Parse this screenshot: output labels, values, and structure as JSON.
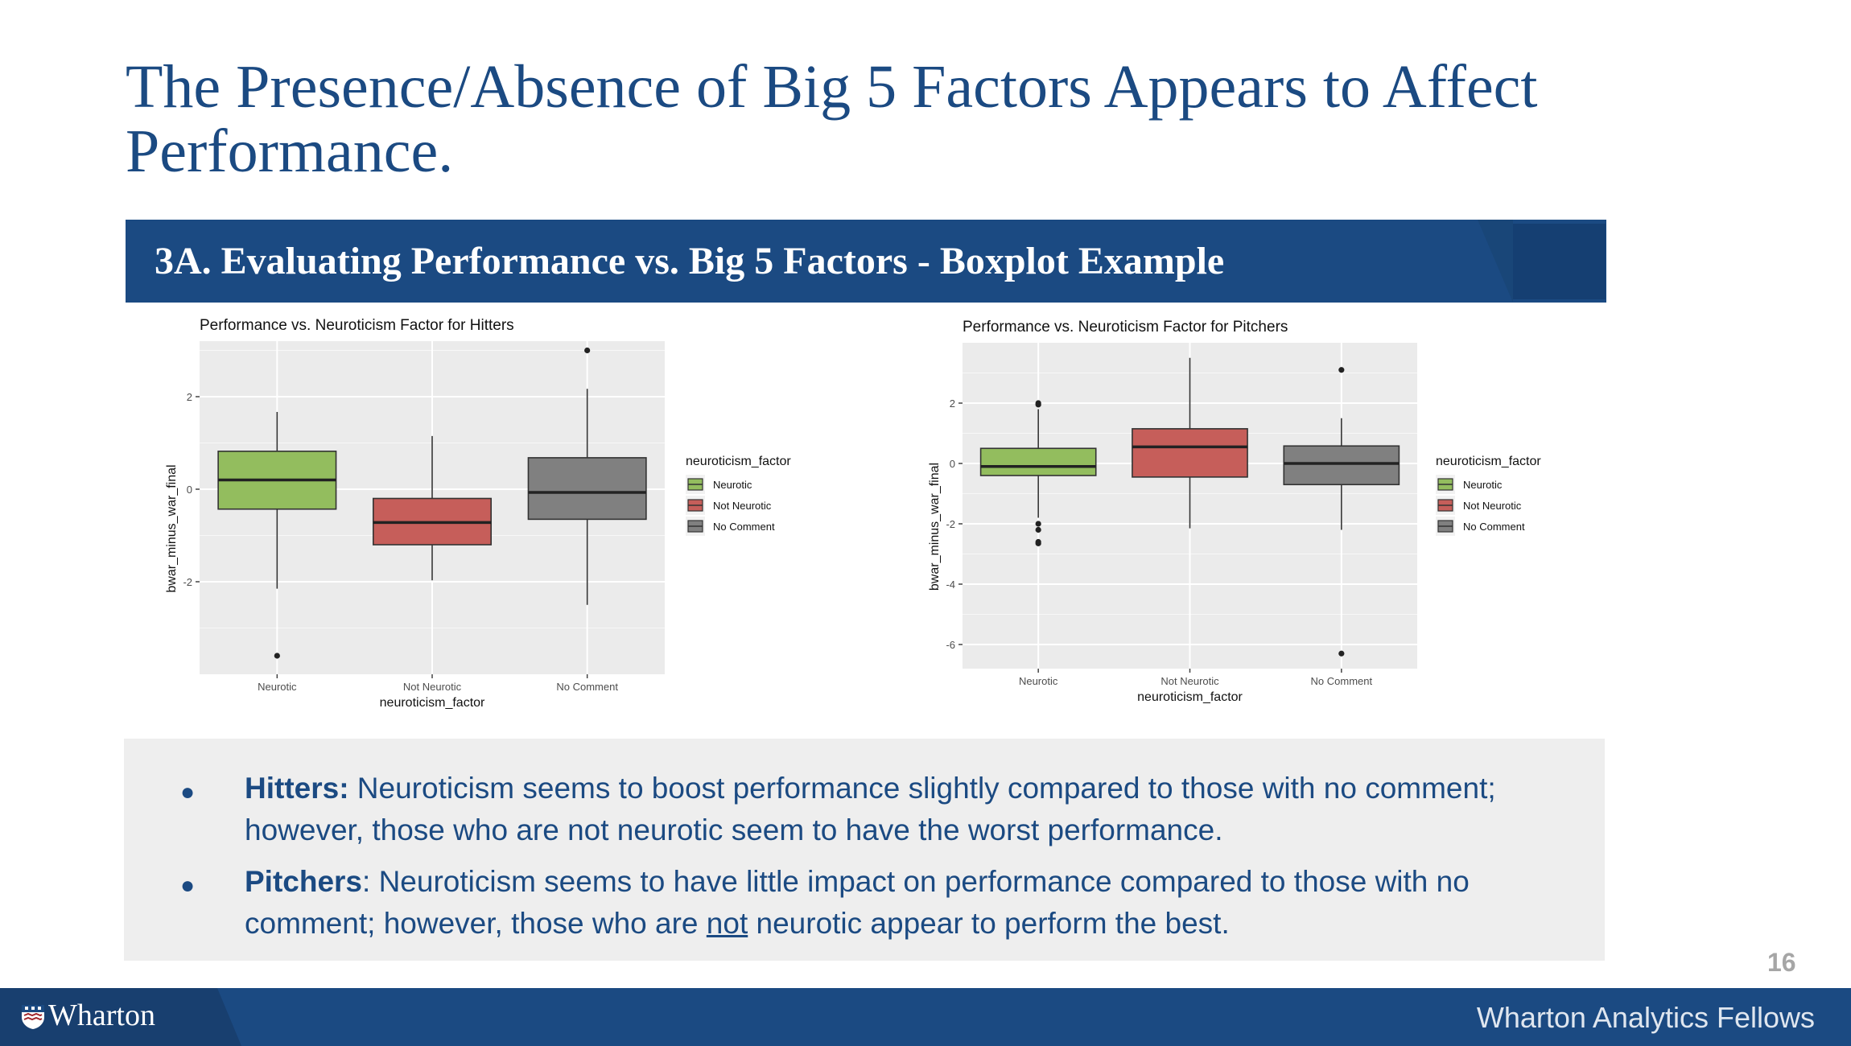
{
  "slide": {
    "title": "The Presence/Absence of Big 5 Factors Appears to Affect Performance.",
    "section_header": "3A. Evaluating Performance vs. Big 5 Factors - Boxplot Example",
    "page_number": "16"
  },
  "footer": {
    "logo_text": "Wharton",
    "right_text": "Wharton Analytics Fellows"
  },
  "notes": [
    {
      "label": "Hitters:",
      "text": " Neuroticism seems to boost performance slightly compared to those with no comment; however, those who are not neurotic seem to have the worst performance."
    },
    {
      "label": "Pitchers",
      "text_before": ": Neuroticism seems to have little impact on performance compared to those with no comment; however, those who are ",
      "underlined": "not",
      "text_after": " neurotic appear to perform the best."
    }
  ],
  "colors": {
    "brand_blue": "#1b4a82",
    "neurotic": "#93bd5e",
    "not_neurotic": "#c65e5a",
    "no_comment": "#808080",
    "panel_bg": "#ebebeb"
  },
  "chart_data": [
    {
      "type": "boxplot",
      "title": "Performance vs. Neuroticism Factor for Hitters",
      "xlabel": "neuroticism_factor",
      "ylabel": "bwar_minus_war_final",
      "ylim": [
        -4.0,
        3.2
      ],
      "yticks": [
        2,
        0,
        -2
      ],
      "ytick_labels": [
        "2",
        "0",
        "-2"
      ],
      "categories": [
        "Neurotic",
        "Not Neurotic",
        "No Comment"
      ],
      "legend_title": "neuroticism_factor",
      "legend_position": "right",
      "boxes": [
        {
          "name": "Neurotic",
          "color": "#93bd5e",
          "whisker_low": -2.15,
          "q1": -0.43,
          "median": 0.2,
          "q3": 0.82,
          "whisker_high": 1.67,
          "outliers": [
            -3.6
          ]
        },
        {
          "name": "Not Neurotic",
          "color": "#c65e5a",
          "whisker_low": -1.97,
          "q1": -1.2,
          "median": -0.72,
          "q3": -0.2,
          "whisker_high": 1.15,
          "outliers": []
        },
        {
          "name": "No Comment",
          "color": "#808080",
          "whisker_low": -2.5,
          "q1": -0.65,
          "median": -0.07,
          "q3": 0.68,
          "whisker_high": 2.17,
          "outliers": [
            3.0
          ]
        }
      ]
    },
    {
      "type": "boxplot",
      "title": "Performance vs. Neuroticism Factor for Pitchers",
      "xlabel": "neuroticism_factor",
      "ylabel": "bwar_minus_war_final",
      "ylim": [
        -6.8,
        4.0
      ],
      "yticks": [
        2,
        0,
        -2,
        -4,
        -6
      ],
      "ytick_labels": [
        "2",
        "0",
        "-2",
        "-4",
        "-6"
      ],
      "categories": [
        "Neurotic",
        "Not Neurotic",
        "No Comment"
      ],
      "legend_title": "neuroticism_factor",
      "legend_position": "right",
      "boxes": [
        {
          "name": "Neurotic",
          "color": "#93bd5e",
          "whisker_low": -1.8,
          "q1": -0.4,
          "median": -0.1,
          "q3": 0.5,
          "whisker_high": 1.8,
          "outliers": [
            -2.0,
            -2.2,
            -2.6,
            -2.65,
            1.95,
            2.0
          ]
        },
        {
          "name": "Not Neurotic",
          "color": "#c65e5a",
          "whisker_low": -2.15,
          "q1": -0.45,
          "median": 0.55,
          "q3": 1.15,
          "whisker_high": 3.5,
          "outliers": []
        },
        {
          "name": "No Comment",
          "color": "#808080",
          "whisker_low": -2.2,
          "q1": -0.7,
          "median": 0.0,
          "q3": 0.58,
          "whisker_high": 1.5,
          "outliers": [
            3.1,
            -6.3
          ]
        }
      ]
    }
  ]
}
